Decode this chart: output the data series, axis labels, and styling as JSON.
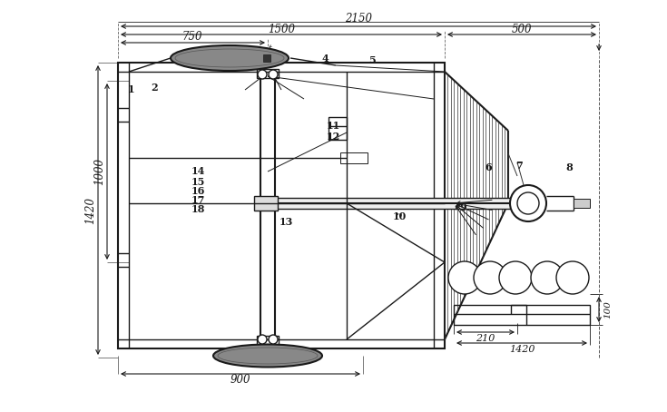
{
  "bg_color": "#ffffff",
  "line_color": "#1a1a1a",
  "fig_width": 7.35,
  "fig_height": 4.54,
  "dpi": 100
}
